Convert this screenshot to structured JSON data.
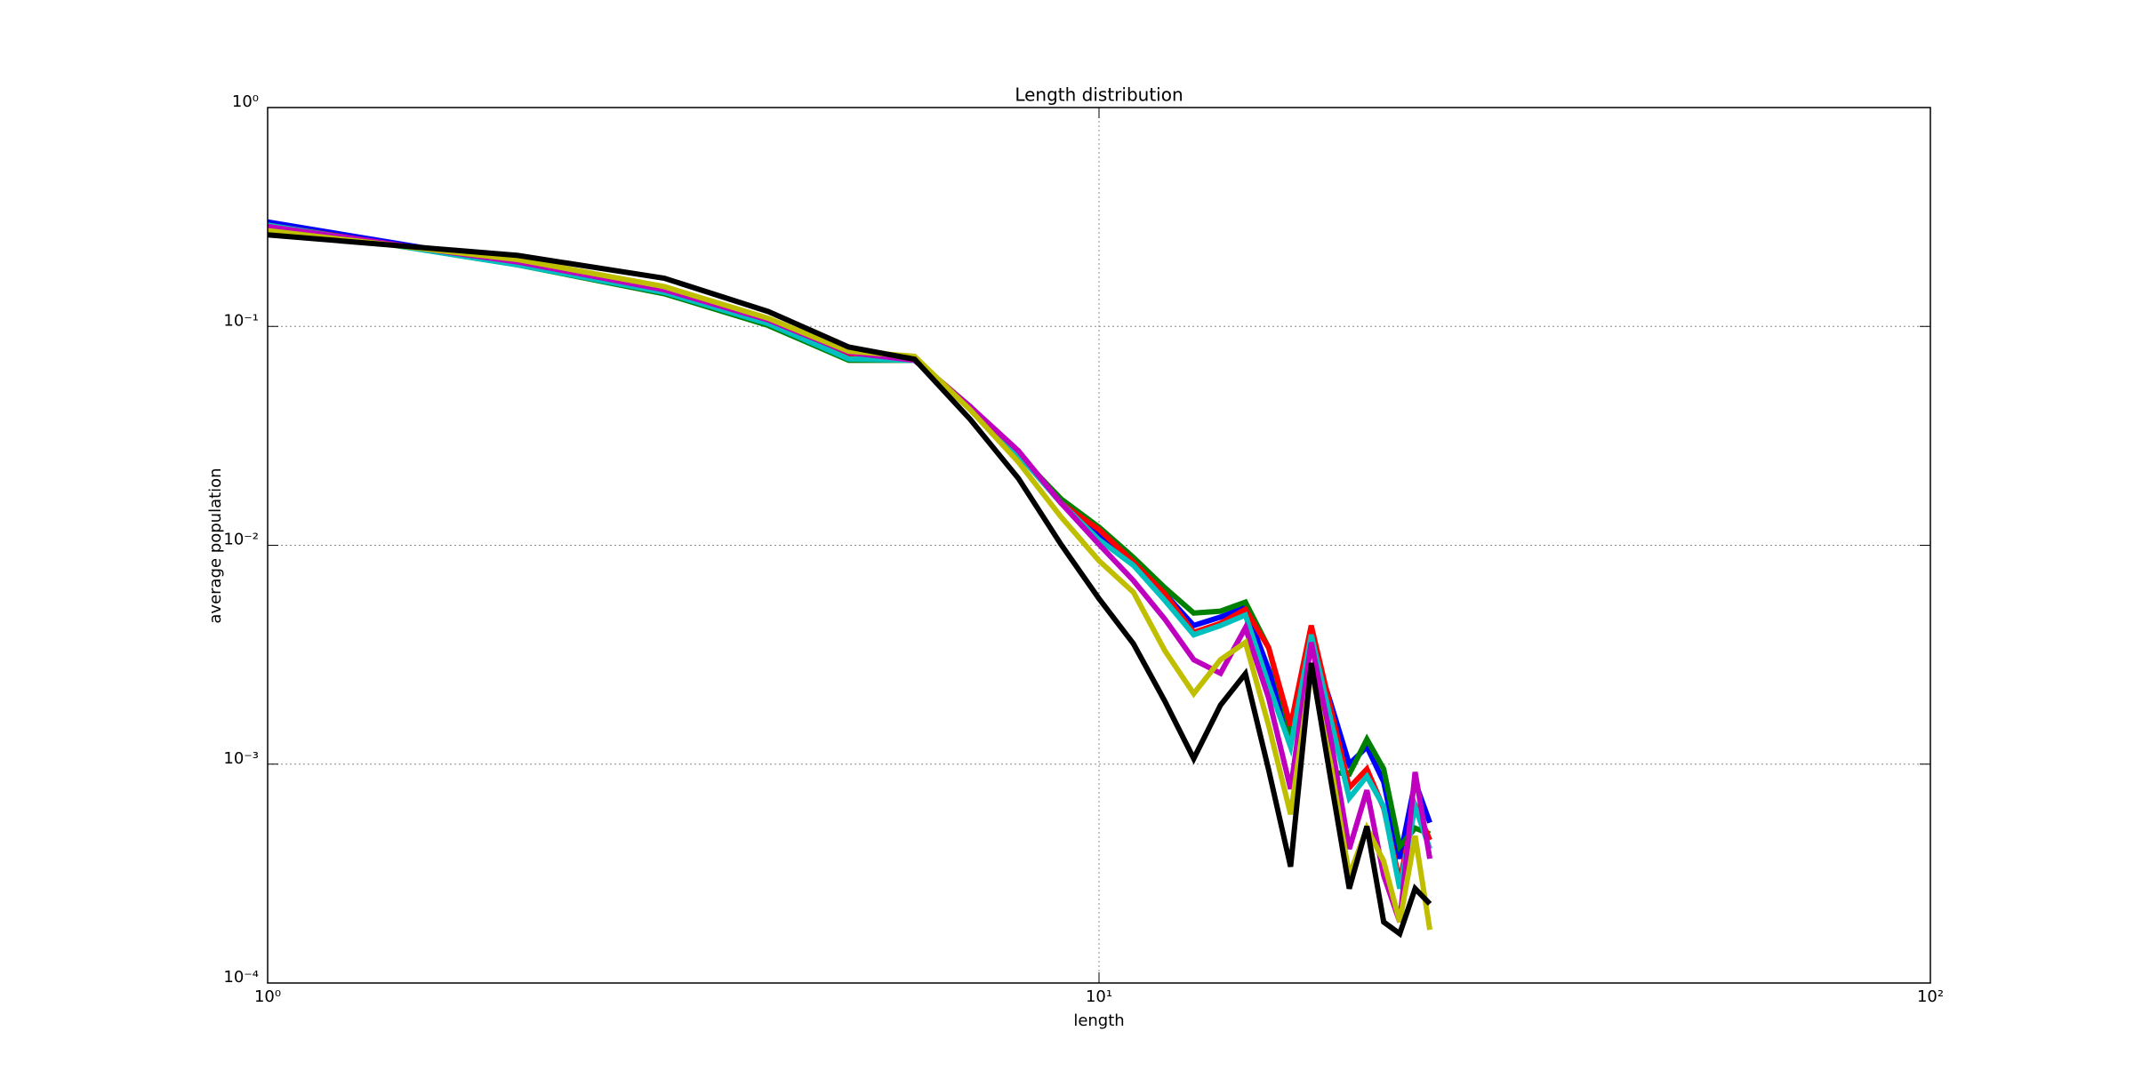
{
  "chart_data": {
    "type": "line",
    "title": "Length distribution",
    "xlabel": "length",
    "ylabel": "average population",
    "xscale": "log",
    "yscale": "log",
    "grid": true,
    "x": [
      1,
      2,
      3,
      4,
      5,
      6,
      7,
      8,
      9,
      10,
      11,
      12,
      13,
      14,
      15,
      16,
      17,
      18,
      19,
      20,
      21,
      22,
      23,
      24,
      25
    ],
    "xlim": [
      1,
      100
    ],
    "ylim": [
      0.0001,
      1
    ],
    "xticks": [
      {
        "value": 1,
        "label": "10⁰"
      },
      {
        "value": 10,
        "label": "10¹"
      },
      {
        "value": 100,
        "label": "10²"
      }
    ],
    "yticks": [
      {
        "value": 0.0001,
        "label": "10⁻⁴"
      },
      {
        "value": 0.001,
        "label": "10⁻³"
      },
      {
        "value": 0.01,
        "label": "10⁻²"
      },
      {
        "value": 0.1,
        "label": "10⁻¹"
      },
      {
        "value": 1,
        "label": "10⁰"
      }
    ],
    "series": [
      {
        "color": "#0000ff",
        "values": [
          0.3,
          0.194,
          0.145,
          0.105,
          0.072,
          0.071,
          0.043,
          0.026,
          0.0161,
          0.0111,
          0.0083,
          0.006,
          0.0043,
          0.0047,
          0.0052,
          0.0027,
          0.0014,
          0.0036,
          0.0019,
          0.001,
          0.0012,
          0.00083,
          0.00037,
          0.00083,
          0.00054
        ]
      },
      {
        "color": "#008000",
        "values": [
          0.29,
          0.191,
          0.141,
          0.101,
          0.07,
          0.07,
          0.043,
          0.026,
          0.0163,
          0.0121,
          0.0088,
          0.0064,
          0.0049,
          0.005,
          0.0055,
          0.0034,
          0.0014,
          0.0028,
          0.00092,
          0.0009,
          0.0013,
          0.00095,
          0.00042,
          0.00051,
          0.00048
        ]
      },
      {
        "color": "#ff0000",
        "values": [
          0.29,
          0.194,
          0.147,
          0.106,
          0.074,
          0.071,
          0.043,
          0.026,
          0.0156,
          0.0118,
          0.0084,
          0.006,
          0.004,
          0.0044,
          0.0051,
          0.0034,
          0.0015,
          0.0043,
          0.0018,
          0.00078,
          0.00095,
          0.00063,
          0.00029,
          0.00065,
          0.00045
        ]
      },
      {
        "color": "#00bfbf",
        "values": [
          0.29,
          0.191,
          0.143,
          0.103,
          0.071,
          0.07,
          0.043,
          0.026,
          0.0156,
          0.0106,
          0.0081,
          0.0056,
          0.0039,
          0.0043,
          0.0048,
          0.0023,
          0.0012,
          0.0039,
          0.0016,
          0.0007,
          0.00088,
          0.00064,
          0.00027,
          0.00064,
          0.00041
        ]
      },
      {
        "color": "#bf00bf",
        "values": [
          0.286,
          0.197,
          0.147,
          0.107,
          0.076,
          0.07,
          0.043,
          0.027,
          0.0156,
          0.0101,
          0.0069,
          0.0046,
          0.003,
          0.0026,
          0.0042,
          0.002,
          0.00077,
          0.0036,
          0.0013,
          0.00041,
          0.00076,
          0.00031,
          0.00019,
          0.00092,
          0.00037
        ]
      },
      {
        "color": "#bfbf00",
        "values": [
          0.274,
          0.202,
          0.152,
          0.109,
          0.077,
          0.073,
          0.0416,
          0.024,
          0.0135,
          0.0085,
          0.0061,
          0.0033,
          0.0021,
          0.003,
          0.0036,
          0.0015,
          0.00059,
          0.0027,
          0.001,
          0.00031,
          0.00051,
          0.00036,
          0.00019,
          0.00047,
          0.000175
        ]
      },
      {
        "color": "#000000",
        "values": [
          0.262,
          0.211,
          0.166,
          0.117,
          0.0805,
          0.0708,
          0.0376,
          0.0202,
          0.0101,
          0.0057,
          0.00355,
          0.00194,
          0.00106,
          0.00186,
          0.00259,
          0.00094,
          0.00034,
          0.0029,
          0.00085,
          0.00027,
          0.00052,
          0.00019,
          0.000168,
          0.00027,
          0.00023
        ]
      }
    ]
  }
}
